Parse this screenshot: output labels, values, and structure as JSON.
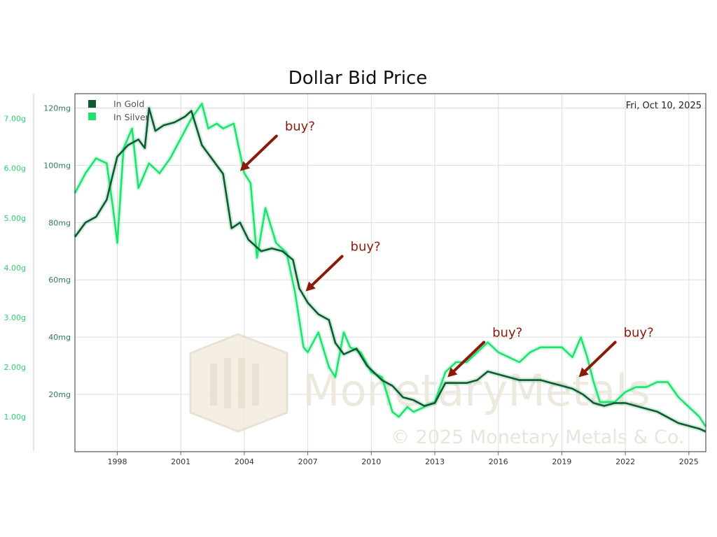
{
  "colors": {
    "gold_series": "#0f5a34",
    "silver_series": "#1ee36f",
    "gold_axis_text": "#2e7d50",
    "silver_axis_text": "#33cc70",
    "annotation": "#8b1a0a",
    "grid": "#dddddd",
    "plot_border": "#333333",
    "watermark": "#ece7db"
  },
  "watermark": {
    "logo_text": "MonetaryMetals",
    "copyright": "© 2025 Monetary Metals & Co."
  },
  "chart_data": {
    "type": "line",
    "title": "Dollar Bid Price",
    "date_label": "Fri, Oct 10, 2025",
    "xlabel": "",
    "ylabel": "",
    "xlim": [
      1996.0,
      2025.8
    ],
    "x_ticks": [
      1998,
      2001,
      2004,
      2007,
      2010,
      2013,
      2016,
      2019,
      2022,
      2025
    ],
    "x_tick_labels": [
      "1998",
      "2001",
      "2004",
      "2007",
      "2010",
      "2013",
      "2016",
      "2019",
      "2022",
      "2025"
    ],
    "gold_axis": {
      "unit": "mg",
      "ylim": [
        0,
        125
      ],
      "ticks": [
        20,
        40,
        60,
        80,
        100,
        120
      ],
      "tick_labels": [
        "20mg",
        "40mg",
        "60mg",
        "80mg",
        "100mg",
        "120mg"
      ]
    },
    "silver_axis": {
      "unit": "g",
      "ylim": [
        0.3,
        7.5
      ],
      "ticks": [
        1,
        2,
        3,
        4,
        5,
        6,
        7
      ],
      "tick_labels": [
        "1.00g",
        "2.00g",
        "3.00g",
        "4.00g",
        "5.00g",
        "6.00g",
        "7.00g"
      ]
    },
    "legend": {
      "position": "top-left",
      "entries": [
        "In Gold",
        "In Silver"
      ]
    },
    "series": [
      {
        "name": "In Gold",
        "axis": "gold",
        "x": [
          1996.0,
          1996.5,
          1997.0,
          1997.5,
          1997.8,
          1998.0,
          1998.5,
          1999.0,
          1999.3,
          1999.5,
          1999.8,
          2000.2,
          2000.7,
          2001.2,
          2001.5,
          2002.0,
          2002.5,
          2003.0,
          2003.4,
          2003.8,
          2004.2,
          2004.8,
          2005.3,
          2005.8,
          2006.3,
          2006.6,
          2007.0,
          2007.5,
          2008.0,
          2008.3,
          2008.7,
          2009.3,
          2009.8,
          2010.5,
          2011.0,
          2011.5,
          2012.0,
          2012.5,
          2013.0,
          2013.5,
          2014.0,
          2014.5,
          2015.0,
          2015.5,
          2016.0,
          2016.5,
          2017.0,
          2017.5,
          2018.0,
          2018.5,
          2019.0,
          2019.5,
          2020.0,
          2020.5,
          2021.0,
          2021.5,
          2022.0,
          2022.5,
          2023.0,
          2023.5,
          2024.0,
          2024.5,
          2025.0,
          2025.5,
          2025.8
        ],
        "values": [
          75,
          80,
          82,
          88,
          97,
          103,
          107,
          109,
          106,
          120,
          112,
          114,
          115,
          117,
          119,
          107,
          102,
          97,
          78,
          80,
          74,
          70,
          71,
          70,
          67,
          57,
          52,
          48,
          46,
          38,
          34,
          36,
          30,
          25,
          23,
          19,
          18,
          16,
          17,
          24,
          24,
          24,
          25,
          28,
          27,
          26,
          25,
          25,
          25,
          24,
          23,
          22,
          20,
          17,
          16,
          17,
          17,
          16,
          15,
          14,
          12,
          10,
          9,
          8,
          7
        ]
      },
      {
        "name": "In Silver",
        "axis": "silver",
        "x": [
          1996.0,
          1996.5,
          1997.0,
          1997.5,
          1997.8,
          1998.0,
          1998.3,
          1998.7,
          1999.0,
          1999.5,
          2000.0,
          2000.5,
          2001.0,
          2001.5,
          2002.0,
          2002.3,
          2002.7,
          2003.0,
          2003.5,
          2004.0,
          2004.3,
          2004.6,
          2005.0,
          2005.5,
          2006.0,
          2006.4,
          2006.8,
          2007.0,
          2007.5,
          2008.0,
          2008.3,
          2008.7,
          2009.0,
          2009.5,
          2010.0,
          2010.5,
          2011.0,
          2011.3,
          2011.7,
          2012.0,
          2012.5,
          2013.0,
          2013.5,
          2014.0,
          2014.5,
          2015.0,
          2015.5,
          2016.0,
          2016.5,
          2017.0,
          2017.5,
          2018.0,
          2018.5,
          2019.0,
          2019.5,
          2019.9,
          2020.2,
          2020.5,
          2020.8,
          2021.5,
          2022.0,
          2022.5,
          2023.0,
          2023.5,
          2024.0,
          2024.5,
          2025.0,
          2025.5,
          2025.8
        ],
        "values": [
          5.5,
          5.9,
          6.2,
          6.1,
          5.2,
          4.5,
          6.4,
          6.8,
          5.6,
          6.1,
          5.9,
          6.2,
          6.6,
          7.0,
          7.3,
          6.8,
          6.9,
          6.8,
          6.9,
          5.9,
          5.7,
          4.2,
          5.2,
          4.5,
          4.3,
          3.5,
          2.4,
          2.3,
          2.7,
          2.0,
          1.8,
          2.7,
          2.4,
          2.3,
          1.9,
          1.8,
          1.1,
          1.0,
          1.2,
          1.1,
          1.2,
          1.3,
          1.9,
          2.1,
          2.1,
          2.3,
          2.5,
          2.3,
          2.2,
          2.1,
          2.3,
          2.4,
          2.4,
          2.4,
          2.2,
          2.6,
          2.2,
          1.7,
          1.3,
          1.3,
          1.5,
          1.6,
          1.6,
          1.7,
          1.7,
          1.4,
          1.2,
          1.0,
          0.8
        ]
      }
    ],
    "annotations": [
      {
        "text": "buy?",
        "x": 2003.8,
        "y": 98
      },
      {
        "text": "buy?",
        "x": 2006.9,
        "y": 56
      },
      {
        "text": "buy?",
        "x": 2013.6,
        "y": 26
      },
      {
        "text": "buy?",
        "x": 2019.8,
        "y": 26
      }
    ]
  }
}
